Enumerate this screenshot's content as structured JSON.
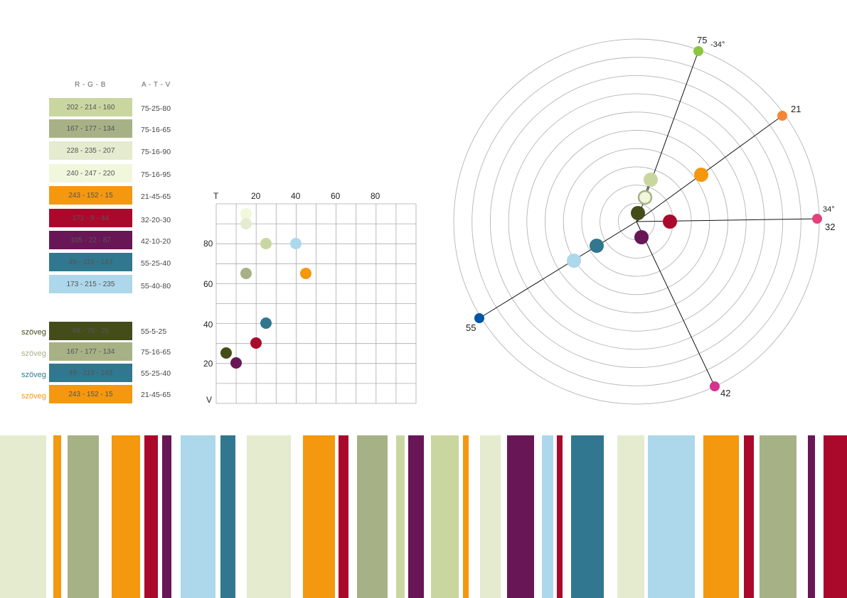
{
  "headers": {
    "rgb": "R - G - B",
    "atv": "A - T - V"
  },
  "swatches": [
    {
      "rgb": "202 - 214 - 160",
      "atv": "75-25-80",
      "color": "#CAD6A0"
    },
    {
      "rgb": "167 - 177 - 134",
      "atv": "75-16-65",
      "color": "#A7B186"
    },
    {
      "rgb": "228 - 235 - 207",
      "atv": "75-16-90",
      "color": "#E4EBCF"
    },
    {
      "rgb": "240 - 247 - 220",
      "atv": "75-16-95",
      "color": "#F0F7DC"
    },
    {
      "rgb": "243 - 152 - 15",
      "atv": "21-45-65",
      "color": "#F3980F"
    },
    {
      "rgb": "171 - 9 - 44",
      "atv": "32-20-30",
      "color": "#AB092C"
    },
    {
      "rgb": "105 - 22 - 87",
      "atv": "42-10-20",
      "color": "#691657"
    },
    {
      "rgb": "49 - 119 - 143",
      "atv": "55-25-40",
      "color": "#31778F"
    },
    {
      "rgb": "173 - 215 - 235",
      "atv": "55-40-80",
      "color": "#ADD7EB"
    }
  ],
  "text_swatches": [
    {
      "label": "szöveg",
      "rgb": "68 - 76 - 25",
      "atv": "55-5-25",
      "color": "#444C19"
    },
    {
      "label": "szöveg",
      "rgb": "167 - 177 - 134",
      "atv": "75-16-65",
      "color": "#A7B186"
    },
    {
      "label": "szöveg",
      "rgb": "49 - 119 - 143",
      "atv": "55-25-40",
      "color": "#31778F"
    },
    {
      "label": "szöveg",
      "rgb": "243 - 152 - 15",
      "atv": "21-45-65",
      "color": "#F3980F"
    }
  ],
  "scatter": {
    "t_label": "T",
    "v_label": "V",
    "x_ticks": [
      "20",
      "40",
      "60",
      "80"
    ],
    "y_ticks": [
      "80",
      "60",
      "40",
      "20"
    ],
    "points": [
      {
        "x": 15,
        "y": 95,
        "color": "#F0F7DC"
      },
      {
        "x": 15,
        "y": 90,
        "color": "#E4EBCF"
      },
      {
        "x": 25,
        "y": 80,
        "color": "#CAD6A0"
      },
      {
        "x": 40,
        "y": 80,
        "color": "#ADD7EB"
      },
      {
        "x": 15,
        "y": 65,
        "color": "#A7B186"
      },
      {
        "x": 45,
        "y": 65,
        "color": "#F3980F"
      },
      {
        "x": 25,
        "y": 40,
        "color": "#31778F"
      },
      {
        "x": 20,
        "y": 30,
        "color": "#AB092C"
      },
      {
        "x": 5,
        "y": 25,
        "color": "#444C19"
      },
      {
        "x": 10,
        "y": 20,
        "color": "#691657"
      }
    ]
  },
  "polar": {
    "labels": {
      "green": "75",
      "angle_top": "-34°",
      "orange": "21",
      "red": "32",
      "angle_right": "34°",
      "magenta": "42",
      "blue": "55"
    },
    "ray_colors": {
      "green": "#8CC63F",
      "orange": "#F58634",
      "red": "#E3417D",
      "magenta": "#D6338F",
      "blue": "#0055A4"
    }
  },
  "stripes": [
    {
      "w": 0.055,
      "c": "#E4EBCF"
    },
    {
      "w": 0.008,
      "c": "#ffffff"
    },
    {
      "w": 0.009,
      "c": "#F3980F"
    },
    {
      "w": 0.008,
      "c": "#ffffff"
    },
    {
      "w": 0.037,
      "c": "#A7B186"
    },
    {
      "w": 0.015,
      "c": "#ffffff"
    },
    {
      "w": 0.034,
      "c": "#F3980F"
    },
    {
      "w": 0.005,
      "c": "#ffffff"
    },
    {
      "w": 0.016,
      "c": "#AB092C"
    },
    {
      "w": 0.005,
      "c": "#ffffff"
    },
    {
      "w": 0.011,
      "c": "#691657"
    },
    {
      "w": 0.011,
      "c": "#ffffff"
    },
    {
      "w": 0.041,
      "c": "#ADD7EB"
    },
    {
      "w": 0.006,
      "c": "#ffffff"
    },
    {
      "w": 0.018,
      "c": "#31778F"
    },
    {
      "w": 0.013,
      "c": "#ffffff"
    },
    {
      "w": 0.052,
      "c": "#E4EBCF"
    },
    {
      "w": 0.015,
      "c": "#ffffff"
    },
    {
      "w": 0.038,
      "c": "#F3980F"
    },
    {
      "w": 0.004,
      "c": "#ffffff"
    },
    {
      "w": 0.012,
      "c": "#AB092C"
    },
    {
      "w": 0.01,
      "c": "#ffffff"
    },
    {
      "w": 0.036,
      "c": "#A7B186"
    },
    {
      "w": 0.01,
      "c": "#ffffff"
    },
    {
      "w": 0.01,
      "c": "#CAD6A0"
    },
    {
      "w": 0.004,
      "c": "#ffffff"
    },
    {
      "w": 0.019,
      "c": "#691657"
    },
    {
      "w": 0.008,
      "c": "#ffffff"
    },
    {
      "w": 0.033,
      "c": "#CAD6A0"
    },
    {
      "w": 0.005,
      "c": "#ffffff"
    },
    {
      "w": 0.007,
      "c": "#F3980F"
    },
    {
      "w": 0.013,
      "c": "#ffffff"
    },
    {
      "w": 0.025,
      "c": "#E4EBCF"
    },
    {
      "w": 0.007,
      "c": "#ffffff"
    },
    {
      "w": 0.032,
      "c": "#691657"
    },
    {
      "w": 0.01,
      "c": "#ffffff"
    },
    {
      "w": 0.013,
      "c": "#ADD7EB"
    },
    {
      "w": 0.004,
      "c": "#ffffff"
    },
    {
      "w": 0.007,
      "c": "#AB092C"
    },
    {
      "w": 0.01,
      "c": "#ffffff"
    },
    {
      "w": 0.039,
      "c": "#31778F"
    },
    {
      "w": 0.016,
      "c": "#ffffff"
    },
    {
      "w": 0.032,
      "c": "#E4EBCF"
    },
    {
      "w": 0.004,
      "c": "#ffffff"
    },
    {
      "w": 0.056,
      "c": "#ADD7EB"
    },
    {
      "w": 0.01,
      "c": "#ffffff"
    },
    {
      "w": 0.042,
      "c": "#F3980F"
    },
    {
      "w": 0.006,
      "c": "#ffffff"
    },
    {
      "w": 0.012,
      "c": "#AB092C"
    },
    {
      "w": 0.006,
      "c": "#ffffff"
    },
    {
      "w": 0.044,
      "c": "#A7B186"
    },
    {
      "w": 0.014,
      "c": "#ffffff"
    },
    {
      "w": 0.008,
      "c": "#691657"
    },
    {
      "w": 0.01,
      "c": "#ffffff"
    },
    {
      "w": 0.028,
      "c": "#AB092C"
    }
  ]
}
